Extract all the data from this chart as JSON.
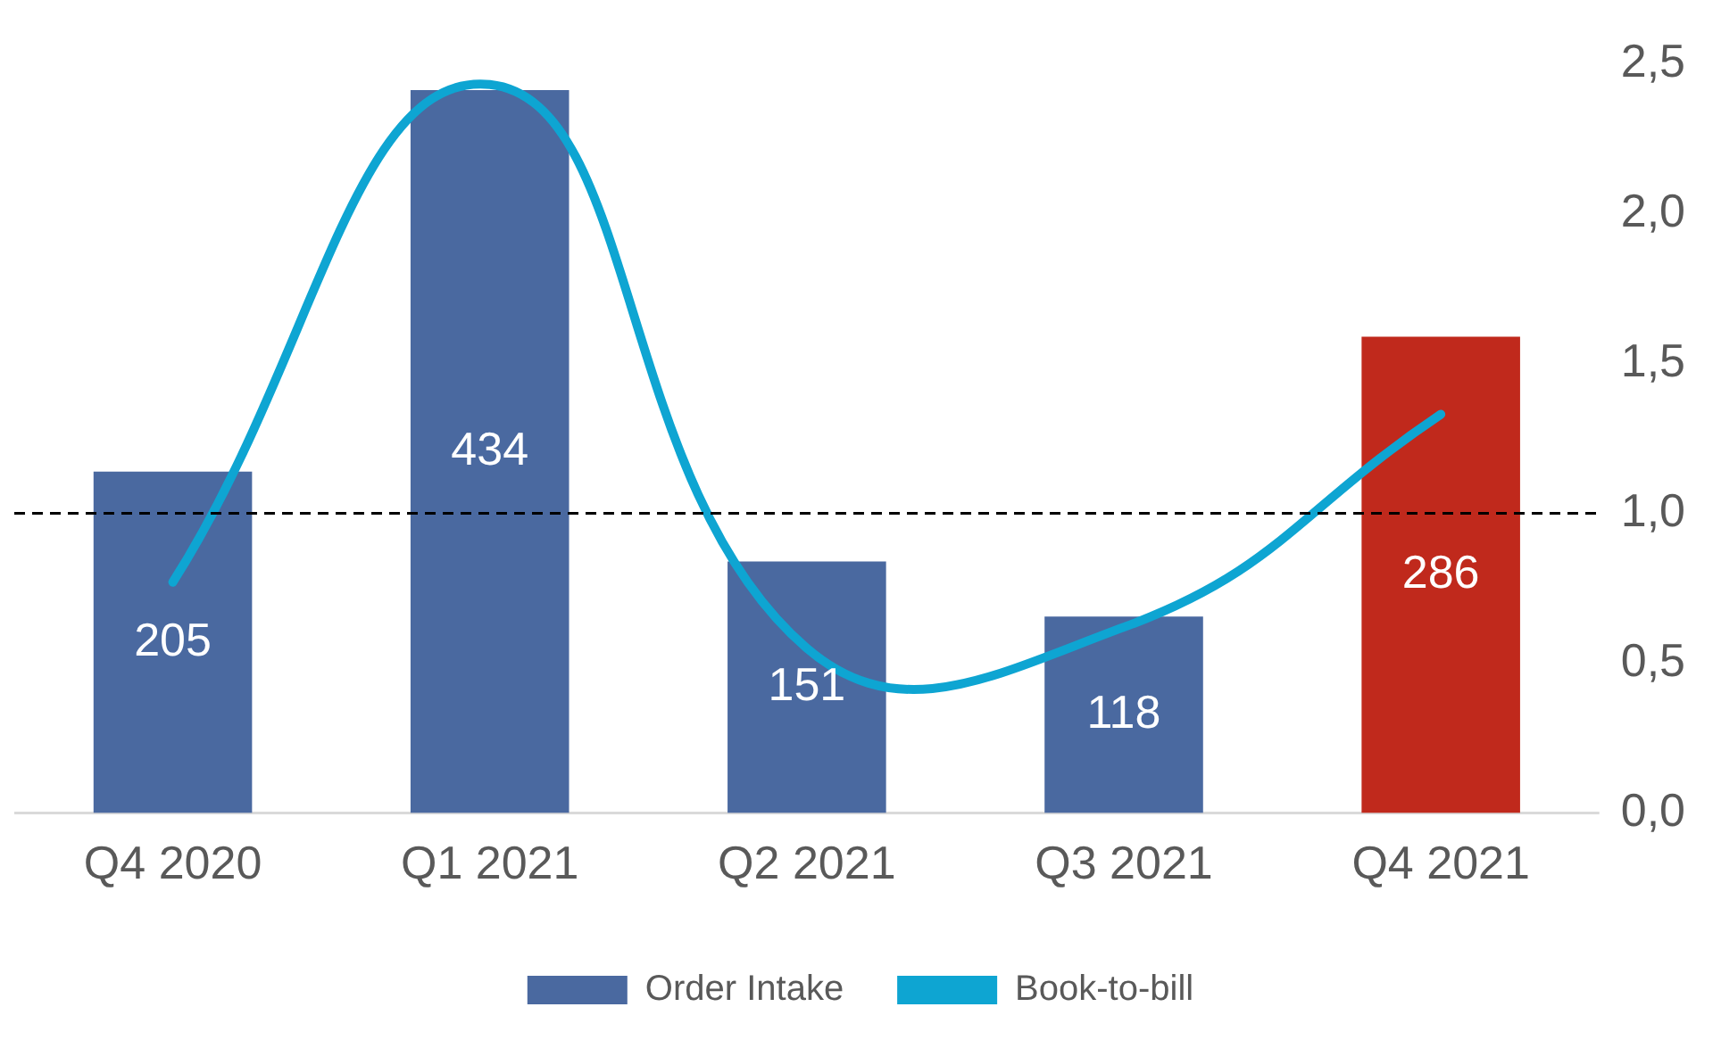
{
  "chart_data": {
    "type": "bar",
    "categories": [
      "Q4 2020",
      "Q1 2021",
      "Q2 2021",
      "Q3 2021",
      "Q4 2021"
    ],
    "series": [
      {
        "name": "Order Intake",
        "color": "#4a69a0",
        "colors": [
          "#4a69a0",
          "#4a69a0",
          "#4a69a0",
          "#4a69a0",
          "#c0291c"
        ],
        "values": [
          205,
          434,
          151,
          118,
          286
        ],
        "value_labels": [
          "205",
          "434",
          "151",
          "118",
          "286"
        ]
      },
      {
        "name": "Book-to-bill",
        "type": "line",
        "axis": "y2",
        "color": "#0ea5d2",
        "values": [
          0.77,
          2.43,
          0.55,
          0.62,
          1.33
        ]
      }
    ],
    "y2lim": [
      0,
      2.5
    ],
    "y2ticks": [
      {
        "value": 0,
        "label": "0,0"
      },
      {
        "value": 0.5,
        "label": "0,5"
      },
      {
        "value": 1,
        "label": "1,0"
      },
      {
        "value": 1.5,
        "label": "1,5"
      },
      {
        "value": 2,
        "label": "2,0"
      },
      {
        "value": 2.5,
        "label": "2,5"
      }
    ],
    "ref_lines": [
      {
        "axis": "y2",
        "value": 1,
        "color": "#000000",
        "line_style": "dashed"
      }
    ],
    "grid": false,
    "legend": "bottom",
    "marker": "none"
  }
}
